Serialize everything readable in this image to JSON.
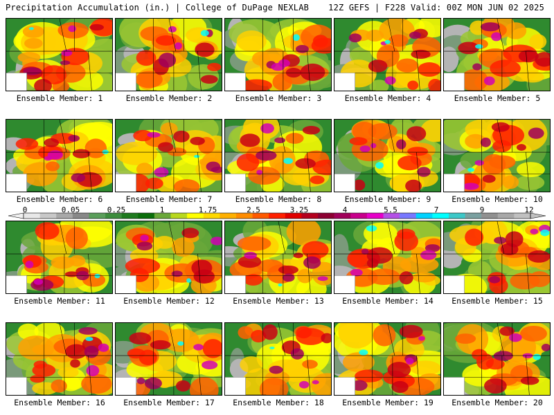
{
  "header": {
    "left_title": "Precipitation Accumulation (in.) | College of DuPage NEXLAB",
    "right_title": "12Z GEFS | F228 Valid: 00Z MON JUN 02 2025"
  },
  "members": [
    {
      "label": "Ensemble Member: 1"
    },
    {
      "label": "Ensemble Member: 2"
    },
    {
      "label": "Ensemble Member: 3"
    },
    {
      "label": "Ensemble Member: 4"
    },
    {
      "label": "Ensemble Member: 5"
    },
    {
      "label": "Ensemble Member: 6"
    },
    {
      "label": "Ensemble Member: 7"
    },
    {
      "label": "Ensemble Member: 8"
    },
    {
      "label": "Ensemble Member: 9"
    },
    {
      "label": "Ensemble Member: 10"
    },
    {
      "label": "Ensemble Member: 11"
    },
    {
      "label": "Ensemble Member: 12"
    },
    {
      "label": "Ensemble Member: 13"
    },
    {
      "label": "Ensemble Member: 14"
    },
    {
      "label": "Ensemble Member: 15"
    },
    {
      "label": "Ensemble Member: 16"
    },
    {
      "label": "Ensemble Member: 17"
    },
    {
      "label": "Ensemble Member: 18"
    },
    {
      "label": "Ensemble Member: 19"
    },
    {
      "label": "Ensemble Member: 20"
    }
  ],
  "colorbar": {
    "tick_labels": [
      "0",
      "0.05",
      "0.25",
      "1",
      "1.75",
      "2.5",
      "3.25",
      "4",
      "5.5",
      "7",
      "9",
      "12"
    ],
    "colors": [
      "#e8e8e8",
      "#c8c8c8",
      "#a8a8a8",
      "#888888",
      "#5a9e5a",
      "#3c8c3c",
      "#1e7a1e",
      "#0a6e0a",
      "#6aa83a",
      "#b8d81e",
      "#ffff00",
      "#ffd800",
      "#ffb000",
      "#ff8c00",
      "#ff5a00",
      "#ff2000",
      "#e00000",
      "#b4001e",
      "#8c0032",
      "#a0005a",
      "#c8008c",
      "#e600c8",
      "#b450e6",
      "#7878ff",
      "#00d2ff",
      "#00ffff",
      "#3cc8c8",
      "#7aa0a0",
      "#909090",
      "#a8a8a8",
      "#c0c0c0"
    ]
  }
}
